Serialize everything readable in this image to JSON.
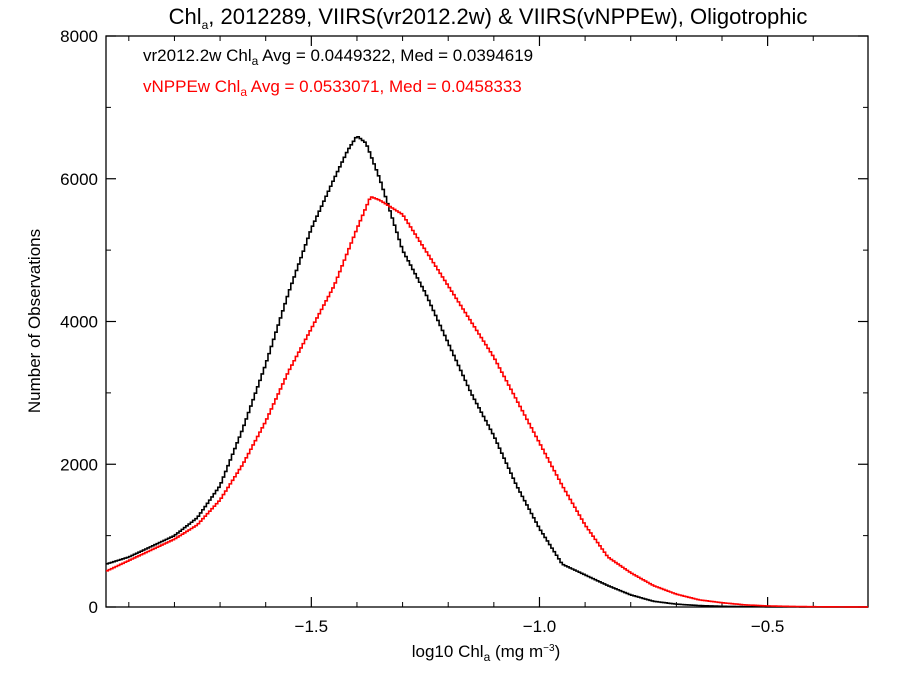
{
  "chart_data": {
    "type": "line",
    "step": true,
    "title": {
      "pre": "Chl",
      "sub": "a",
      "post": ", 2012289, VIIRS(vr2012.2w) & VIIRS(vNPPEw), Oligotrophic"
    },
    "xlabel": {
      "pre": "log10 Chl",
      "sub": "a",
      "mid": " (mg m",
      "sup": "−3",
      "post": ")"
    },
    "ylabel": "Number of Observations",
    "xlim": [
      -1.95,
      -0.28
    ],
    "ylim": [
      0,
      8000
    ],
    "x_ticks": [
      {
        "value": -1.5,
        "label": "−1.5"
      },
      {
        "value": -1.0,
        "label": "−1.0"
      },
      {
        "value": -0.5,
        "label": "−0.5"
      }
    ],
    "y_ticks": [
      {
        "value": 0,
        "label": "0"
      },
      {
        "value": 2000,
        "label": "2000"
      },
      {
        "value": 4000,
        "label": "4000"
      },
      {
        "value": 6000,
        "label": "6000"
      },
      {
        "value": 8000,
        "label": "8000"
      }
    ],
    "grid": false,
    "legend_position": "top-left",
    "series": [
      {
        "name": "vr2012.2w",
        "color": "#000000",
        "legend": {
          "pre": "vr2012.2w Chl",
          "sub": "a",
          "post": " Avg = 0.0449322, Med = 0.0394619"
        },
        "x": [
          -1.95,
          -1.9,
          -1.85,
          -1.8,
          -1.75,
          -1.7,
          -1.65,
          -1.6,
          -1.55,
          -1.5,
          -1.45,
          -1.42,
          -1.4,
          -1.38,
          -1.35,
          -1.3,
          -1.25,
          -1.2,
          -1.15,
          -1.1,
          -1.05,
          -1.0,
          -0.95,
          -0.9,
          -0.85,
          -0.8,
          -0.75,
          -0.7,
          -0.65,
          -0.6,
          -0.55,
          -0.5,
          -0.45,
          -0.4,
          -0.35,
          -0.3
        ],
        "y": [
          600,
          700,
          850,
          1000,
          1250,
          1700,
          2500,
          3400,
          4400,
          5300,
          6000,
          6400,
          6600,
          6500,
          6000,
          5000,
          4400,
          3700,
          3000,
          2400,
          1700,
          1100,
          600,
          450,
          300,
          170,
          80,
          40,
          20,
          10,
          5,
          3,
          2,
          1,
          0,
          0
        ]
      },
      {
        "name": "vNPPEw",
        "color": "#ff0000",
        "legend": {
          "pre": "vNPPEw Chl",
          "sub": "a",
          "post": " Avg = 0.0533071, Med = 0.0458333"
        },
        "x": [
          -1.95,
          -1.9,
          -1.85,
          -1.8,
          -1.75,
          -1.7,
          -1.65,
          -1.6,
          -1.55,
          -1.5,
          -1.45,
          -1.4,
          -1.37,
          -1.35,
          -1.3,
          -1.25,
          -1.2,
          -1.15,
          -1.1,
          -1.05,
          -1.0,
          -0.95,
          -0.9,
          -0.85,
          -0.8,
          -0.75,
          -0.7,
          -0.65,
          -0.6,
          -0.55,
          -0.5,
          -0.45,
          -0.4,
          -0.35,
          -0.3
        ],
        "y": [
          500,
          650,
          800,
          950,
          1150,
          1500,
          2000,
          2600,
          3300,
          3900,
          4500,
          5300,
          5750,
          5700,
          5500,
          5000,
          4500,
          4000,
          3500,
          2900,
          2300,
          1700,
          1150,
          700,
          480,
          300,
          180,
          100,
          60,
          30,
          15,
          8,
          4,
          2,
          1
        ]
      }
    ]
  }
}
